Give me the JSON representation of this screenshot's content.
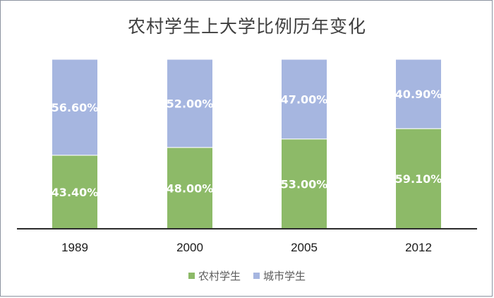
{
  "chart_data": {
    "type": "bar",
    "stacked": true,
    "title": "农村学生上大学比例历年变化",
    "categories": [
      "1989",
      "2000",
      "2005",
      "2012"
    ],
    "series": [
      {
        "name": "农村学生",
        "color": "#8dba68",
        "values": [
          43.4,
          48.0,
          53.0,
          59.1
        ],
        "labels": [
          "43.40%",
          "48.00%",
          "53.00%",
          "59.10%"
        ]
      },
      {
        "name": "城市学生",
        "color": "#a6b6e0",
        "values": [
          56.6,
          52.0,
          47.0,
          40.9
        ],
        "labels": [
          "56.60%",
          "52.00%",
          "47.00%",
          "40.90%"
        ]
      }
    ],
    "ylim": [
      0,
      100
    ],
    "grid": false,
    "legend_position": "bottom"
  }
}
